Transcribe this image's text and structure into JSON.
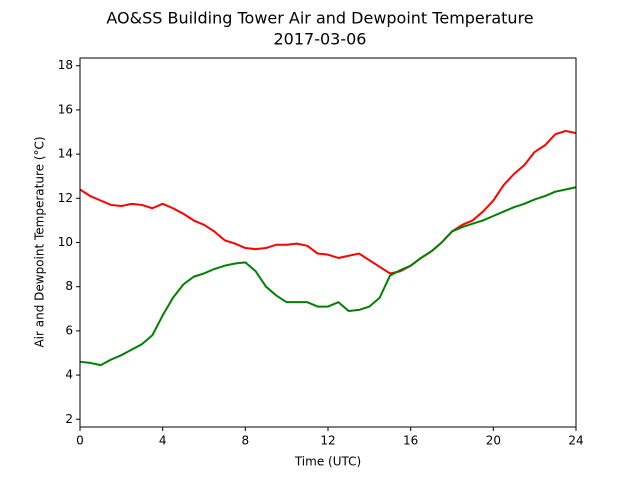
{
  "chart_data": {
    "type": "line",
    "title": "AO&SS Building Tower Air and Dewpoint Temperature",
    "subtitle": "2017-03-06",
    "x_label": "Time (UTC)",
    "y_label": "Air and Dewpoint Temperature (°C)",
    "x": [
      0,
      0.5,
      1,
      1.5,
      2,
      2.5,
      3,
      3.5,
      4,
      4.5,
      5,
      5.5,
      6,
      6.5,
      7,
      7.5,
      8,
      8.5,
      9,
      9.5,
      10,
      10.5,
      11,
      11.5,
      12,
      12.5,
      13,
      13.5,
      14,
      14.5,
      15,
      15.5,
      16,
      16.5,
      17,
      17.5,
      18,
      18.5,
      19,
      19.5,
      20,
      20.5,
      21,
      21.5,
      22,
      22.5,
      23,
      23.5,
      24
    ],
    "series": [
      {
        "color": "#ff0000",
        "values": [
          12.4,
          12.1,
          11.9,
          11.7,
          11.65,
          11.75,
          11.7,
          11.55,
          11.75,
          11.55,
          11.3,
          11.0,
          10.8,
          10.5,
          10.1,
          9.95,
          9.75,
          9.7,
          9.75,
          9.9,
          9.9,
          9.95,
          9.85,
          9.5,
          9.45,
          9.3,
          9.4,
          9.5,
          9.2,
          8.9,
          8.6,
          8.7,
          8.95,
          9.3,
          9.6,
          10.0,
          10.5,
          10.8,
          11.0,
          11.4,
          11.9,
          12.6,
          13.1,
          13.5,
          14.1,
          14.4,
          14.9,
          15.05,
          14.95
        ]
      },
      {
        "color": "#008000",
        "values": [
          4.6,
          4.55,
          4.45,
          4.7,
          4.9,
          5.15,
          5.4,
          5.8,
          6.7,
          7.5,
          8.1,
          8.45,
          8.6,
          8.8,
          8.95,
          9.05,
          9.1,
          8.7,
          8.0,
          7.6,
          7.3,
          7.3,
          7.3,
          7.1,
          7.1,
          7.3,
          6.9,
          6.95,
          7.1,
          7.5,
          8.5,
          8.75,
          8.95,
          9.3,
          9.6,
          10.0,
          10.5,
          10.7,
          10.85,
          11.0,
          11.2,
          11.4,
          11.6,
          11.75,
          11.95,
          12.1,
          12.3,
          12.4,
          12.5
        ]
      }
    ],
    "xlim": [
      0,
      24
    ],
    "xticks": [
      0,
      4,
      8,
      12,
      16,
      20,
      24
    ],
    "ylim": [
      1.65,
      18.35
    ],
    "yticks": [
      2,
      4,
      6,
      8,
      10,
      12,
      14,
      16,
      18
    ],
    "grid": false
  }
}
